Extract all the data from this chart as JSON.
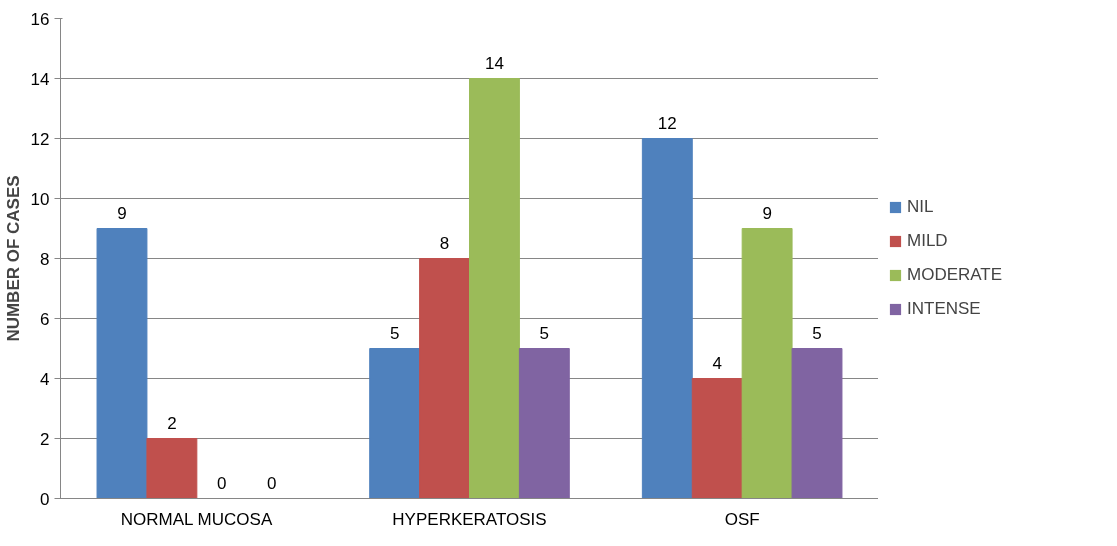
{
  "chart_data": {
    "type": "bar",
    "ylabel": "NUMBER OF CASES",
    "categories": [
      "NORMAL MUCOSA",
      "HYPERKERATOSIS",
      "OSF"
    ],
    "series": [
      {
        "name": "NIL",
        "color": "#4f81bd",
        "values": [
          9,
          5,
          12
        ]
      },
      {
        "name": "MILD",
        "color": "#c0504d",
        "values": [
          2,
          8,
          4
        ]
      },
      {
        "name": "MODERATE",
        "color": "#9bbb59",
        "values": [
          0,
          14,
          9
        ]
      },
      {
        "name": "INTENSE",
        "color": "#8064a2",
        "values": [
          0,
          5,
          5
        ]
      }
    ],
    "ylim": [
      0,
      16
    ],
    "yticks": [
      0,
      2,
      4,
      6,
      8,
      10,
      12,
      14,
      16
    ],
    "grid": "y",
    "legend": "right",
    "data_labels": true
  }
}
